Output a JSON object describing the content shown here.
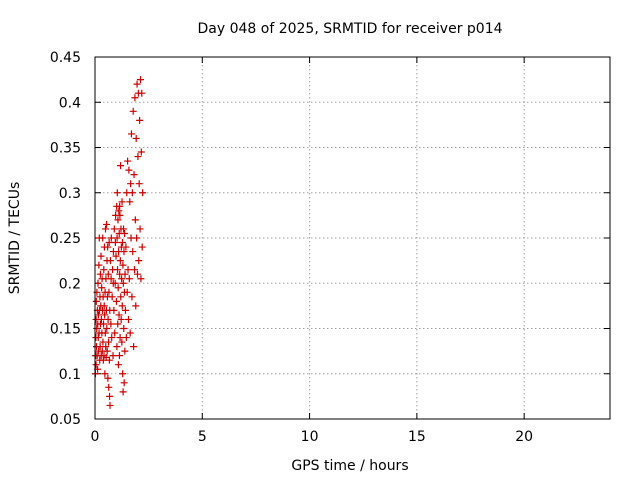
{
  "chart_data": {
    "type": "scatter",
    "title": "Day 048 of 2025, SRMTID for receiver p014",
    "xlabel": "GPS time / hours",
    "ylabel": "SRMTID / TECUs",
    "xlim": [
      0,
      24
    ],
    "ylim": [
      0.05,
      0.45
    ],
    "x_ticks": [
      0,
      5,
      10,
      15,
      20
    ],
    "x_tick_labels": [
      "0",
      "5",
      "10",
      "15",
      "20"
    ],
    "y_ticks": [
      0.05,
      0.1,
      0.15,
      0.2,
      0.25,
      0.3,
      0.35,
      0.4,
      0.45
    ],
    "y_tick_labels": [
      "0.05",
      "0.1",
      "0.15",
      "0.2",
      "0.25",
      "0.3",
      "0.35",
      "0.4",
      "0.45"
    ],
    "grid": true,
    "marker": "plus",
    "series": [
      {
        "name": "p014",
        "color": "#cc0000",
        "points": [
          [
            0.02,
            0.1
          ],
          [
            0.03,
            0.12
          ],
          [
            0.04,
            0.14
          ],
          [
            0.05,
            0.16
          ],
          [
            0.05,
            0.11
          ],
          [
            0.06,
            0.18
          ],
          [
            0.07,
            0.13
          ],
          [
            0.08,
            0.15
          ],
          [
            0.09,
            0.19
          ],
          [
            0.1,
            0.12
          ],
          [
            0.11,
            0.17
          ],
          [
            0.12,
            0.105
          ],
          [
            0.13,
            0.155
          ],
          [
            0.14,
            0.2
          ],
          [
            0.15,
            0.14
          ],
          [
            0.16,
            0.165
          ],
          [
            0.17,
            0.125
          ],
          [
            0.18,
            0.22
          ],
          [
            0.19,
            0.145
          ],
          [
            0.2,
            0.25
          ],
          [
            0.21,
            0.17
          ],
          [
            0.22,
            0.115
          ],
          [
            0.23,
            0.185
          ],
          [
            0.24,
            0.13
          ],
          [
            0.25,
            0.21
          ],
          [
            0.26,
            0.155
          ],
          [
            0.27,
            0.175
          ],
          [
            0.28,
            0.23
          ],
          [
            0.29,
            0.12
          ],
          [
            0.3,
            0.16
          ],
          [
            0.31,
            0.195
          ],
          [
            0.32,
            0.145
          ],
          [
            0.33,
            0.205
          ],
          [
            0.34,
            0.125
          ],
          [
            0.35,
            0.17
          ],
          [
            0.36,
            0.25
          ],
          [
            0.37,
            0.135
          ],
          [
            0.38,
            0.185
          ],
          [
            0.39,
            0.115
          ],
          [
            0.4,
            0.155
          ],
          [
            0.41,
            0.215
          ],
          [
            0.42,
            0.12
          ],
          [
            0.43,
            0.175
          ],
          [
            0.44,
            0.24
          ],
          [
            0.45,
            0.165
          ],
          [
            0.46,
            0.1
          ],
          [
            0.47,
            0.19
          ],
          [
            0.48,
            0.145
          ],
          [
            0.49,
            0.26
          ],
          [
            0.5,
            0.13
          ],
          [
            0.51,
            0.205
          ],
          [
            0.52,
            0.118
          ],
          [
            0.53,
            0.17
          ],
          [
            0.54,
            0.265
          ],
          [
            0.55,
            0.15
          ],
          [
            0.56,
            0.225
          ],
          [
            0.57,
            0.125
          ],
          [
            0.58,
            0.185
          ],
          [
            0.59,
            0.24
          ],
          [
            0.6,
            0.095
          ],
          [
            0.61,
            0.16
          ],
          [
            0.62,
            0.21
          ],
          [
            0.63,
            0.135
          ],
          [
            0.64,
            0.085
          ],
          [
            0.65,
            0.19
          ],
          [
            0.66,
            0.245
          ],
          [
            0.67,
            0.115
          ],
          [
            0.68,
            0.075
          ],
          [
            0.69,
            0.17
          ],
          [
            0.7,
            0.065
          ],
          [
            0.72,
            0.225
          ],
          [
            0.74,
            0.155
          ],
          [
            0.75,
            0.205
          ],
          [
            0.76,
            0.25
          ],
          [
            0.78,
            0.14
          ],
          [
            0.8,
            0.185
          ],
          [
            0.82,
            0.215
          ],
          [
            0.84,
            0.12
          ],
          [
            0.86,
            0.235
          ],
          [
            0.88,
            0.17
          ],
          [
            0.9,
            0.26
          ],
          [
            0.92,
            0.145
          ],
          [
            0.94,
            0.2
          ],
          [
            0.96,
            0.275
          ],
          [
            0.98,
            0.23
          ],
          [
            1.0,
            0.18
          ],
          [
            1.01,
            0.285
          ],
          [
            1.02,
            0.13
          ],
          [
            1.03,
            0.25
          ],
          [
            1.04,
            0.3
          ],
          [
            1.05,
            0.215
          ],
          [
            1.06,
            0.155
          ],
          [
            1.07,
            0.27
          ],
          [
            1.08,
            0.195
          ],
          [
            1.09,
            0.11
          ],
          [
            1.1,
            0.235
          ],
          [
            1.11,
            0.28
          ],
          [
            1.12,
            0.165
          ],
          [
            1.13,
            0.255
          ],
          [
            1.14,
            0.12
          ],
          [
            1.15,
            0.21
          ],
          [
            1.16,
            0.275
          ],
          [
            1.17,
            0.14
          ],
          [
            1.18,
            0.225
          ],
          [
            1.19,
            0.33
          ],
          [
            1.2,
            0.185
          ],
          [
            1.21,
            0.26
          ],
          [
            1.22,
            0.16
          ],
          [
            1.23,
            0.24
          ],
          [
            1.24,
            0.205
          ],
          [
            1.25,
            0.135
          ],
          [
            1.26,
            0.29
          ],
          [
            1.27,
            0.175
          ],
          [
            1.28,
            0.245
          ],
          [
            1.29,
            0.1
          ],
          [
            1.3,
            0.22
          ],
          [
            1.31,
            0.08
          ],
          [
            1.32,
            0.2
          ],
          [
            1.33,
            0.26
          ],
          [
            1.34,
            0.15
          ],
          [
            1.35,
            0.235
          ],
          [
            1.36,
            0.09
          ],
          [
            1.37,
            0.19
          ],
          [
            1.38,
            0.255
          ],
          [
            1.39,
            0.125
          ],
          [
            1.4,
            0.21
          ],
          [
            1.42,
            0.17
          ],
          [
            1.44,
            0.24
          ],
          [
            1.46,
            0.14
          ],
          [
            1.48,
            0.3
          ],
          [
            1.5,
            0.19
          ],
          [
            1.52,
            0.335
          ],
          [
            1.54,
            0.215
          ],
          [
            1.56,
            0.16
          ],
          [
            1.58,
            0.325
          ],
          [
            1.6,
            0.205
          ],
          [
            1.62,
            0.29
          ],
          [
            1.64,
            0.145
          ],
          [
            1.66,
            0.31
          ],
          [
            1.68,
            0.25
          ],
          [
            1.7,
            0.365
          ],
          [
            1.72,
            0.185
          ],
          [
            1.74,
            0.3
          ],
          [
            1.76,
            0.235
          ],
          [
            1.78,
            0.39
          ],
          [
            1.8,
            0.13
          ],
          [
            1.82,
            0.32
          ],
          [
            1.84,
            0.215
          ],
          [
            1.86,
            0.405
          ],
          [
            1.88,
            0.27
          ],
          [
            1.9,
            0.175
          ],
          [
            1.92,
            0.36
          ],
          [
            1.94,
            0.25
          ],
          [
            1.96,
            0.42
          ],
          [
            1.98,
            0.21
          ],
          [
            2.0,
            0.34
          ],
          [
            2.02,
            0.41
          ],
          [
            2.04,
            0.225
          ],
          [
            2.06,
            0.31
          ],
          [
            2.08,
            0.38
          ],
          [
            2.1,
            0.26
          ],
          [
            2.12,
            0.425
          ],
          [
            2.14,
            0.205
          ],
          [
            2.16,
            0.345
          ],
          [
            2.18,
            0.41
          ],
          [
            2.2,
            0.24
          ],
          [
            2.22,
            0.3
          ],
          [
            1.15,
            0.285
          ],
          [
            0.95,
            0.245
          ],
          [
            0.85,
            0.2
          ]
        ]
      }
    ]
  }
}
